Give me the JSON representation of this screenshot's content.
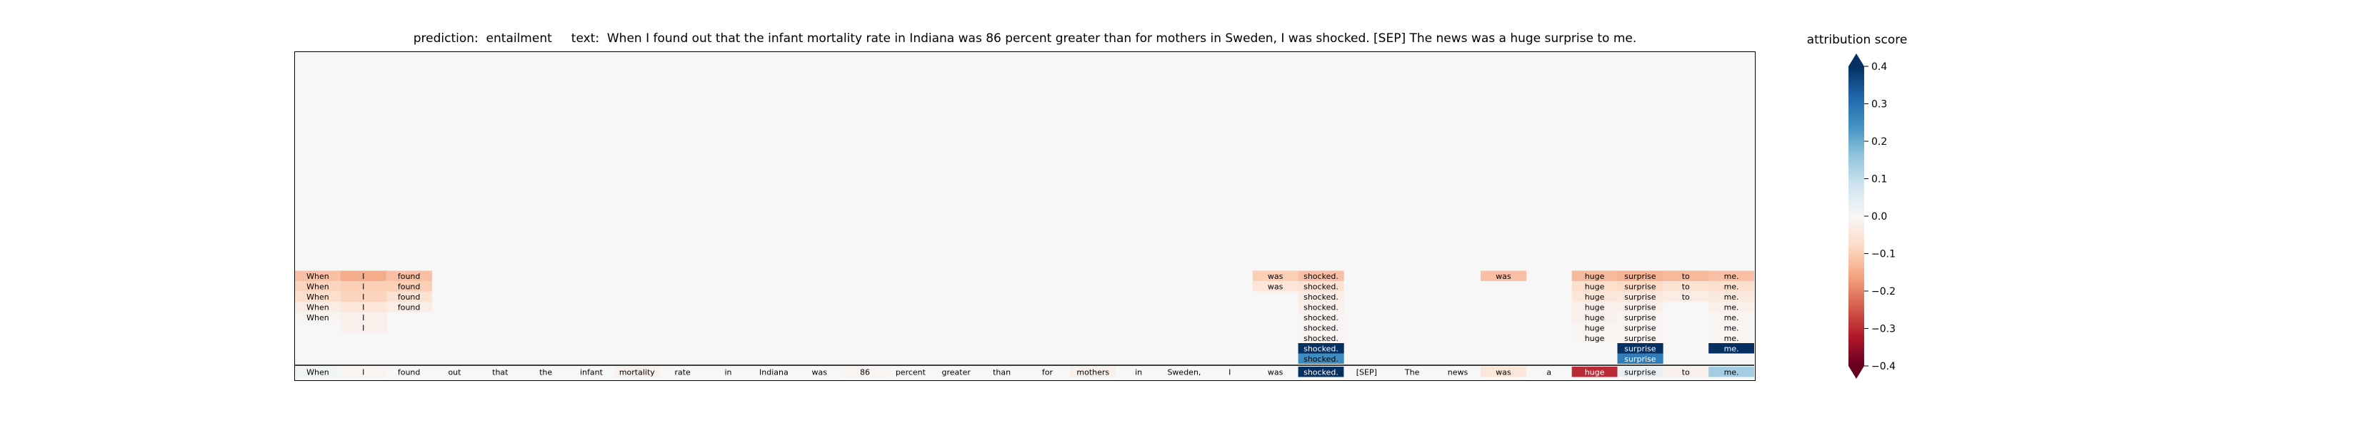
{
  "chart_data": {
    "type": "heatmap",
    "title": "prediction:  entailment     text:  When I found out that the infant mortality rate in Indiana was 86 percent greater than for mothers in Sweden, I was shocked. [SEP] The news was a huge surprise to me.",
    "tokens": [
      "When",
      "I",
      "found",
      "out",
      "that",
      "the",
      "infant",
      "mortality",
      "rate",
      "in",
      "Indiana",
      "was",
      "86",
      "percent",
      "greater",
      "than",
      "for",
      "mothers",
      "in",
      "Sweden,",
      "I",
      "was",
      "shocked.",
      "[SEP]",
      "The",
      "news",
      "was",
      "a",
      "huge",
      "surprise",
      "to",
      "me."
    ],
    "base_row_scores": [
      0.01,
      -0.01,
      0.0,
      0.0,
      0.0,
      0.0,
      0.0,
      -0.02,
      0.0,
      0.0,
      0.0,
      0.0,
      -0.01,
      0.0,
      0.0,
      0.0,
      0.0,
      -0.02,
      0.0,
      0.0,
      0.0,
      0.0,
      0.4,
      0.0,
      0.0,
      0.0,
      -0.05,
      0.0,
      -0.3,
      0.03,
      -0.02,
      0.14
    ],
    "stack_rows": [
      [
        [
          0,
          -0.12
        ],
        [
          1,
          -0.15
        ],
        [
          2,
          -0.12
        ],
        [
          21,
          -0.1
        ],
        [
          22,
          -0.12
        ],
        [
          26,
          -0.12
        ],
        [
          28,
          -0.13
        ],
        [
          29,
          -0.14
        ],
        [
          30,
          -0.13
        ],
        [
          31,
          -0.12
        ]
      ],
      [
        [
          0,
          -0.09
        ],
        [
          1,
          -0.1
        ],
        [
          2,
          -0.1
        ],
        [
          21,
          -0.05
        ],
        [
          22,
          -0.06
        ],
        [
          28,
          -0.07
        ],
        [
          29,
          -0.08
        ],
        [
          30,
          -0.06
        ],
        [
          31,
          -0.07
        ]
      ],
      [
        [
          0,
          -0.07
        ],
        [
          1,
          -0.09
        ],
        [
          2,
          -0.06
        ],
        [
          22,
          -0.03
        ],
        [
          28,
          -0.05
        ],
        [
          29,
          -0.04
        ],
        [
          30,
          -0.03
        ],
        [
          31,
          -0.04
        ]
      ],
      [
        [
          0,
          -0.03
        ],
        [
          1,
          -0.05
        ],
        [
          2,
          -0.03
        ],
        [
          22,
          -0.02
        ],
        [
          28,
          -0.02
        ],
        [
          29,
          -0.02
        ],
        [
          31,
          -0.02
        ]
      ],
      [
        [
          0,
          -0.01
        ],
        [
          1,
          -0.02
        ],
        [
          22,
          -0.01
        ],
        [
          28,
          -0.02
        ],
        [
          29,
          -0.01
        ],
        [
          31,
          -0.01
        ]
      ],
      [
        [
          1,
          -0.02
        ],
        [
          22,
          -0.01
        ],
        [
          28,
          -0.01
        ],
        [
          29,
          -0.01
        ],
        [
          31,
          -0.01
        ]
      ],
      [
        [
          22,
          -0.01
        ],
        [
          28,
          -0.01
        ],
        [
          29,
          -0.01
        ],
        [
          31,
          -0.01
        ]
      ],
      [
        [
          22,
          0.4
        ],
        [
          29,
          0.4
        ],
        [
          31,
          0.4
        ]
      ],
      [
        [
          22,
          0.25
        ],
        [
          29,
          0.28
        ]
      ]
    ],
    "color_scale": {
      "label": "attribution score",
      "min": -0.4,
      "max": 0.4,
      "ticks": [
        "0.4",
        "0.3",
        "0.2",
        "0.1",
        "0.0",
        "−0.1",
        "−0.2",
        "−0.3",
        "−0.4"
      ],
      "colors": [
        "#67001f",
        "#b2182b",
        "#d6604d",
        "#f4a582",
        "#fddbc7",
        "#f7f7f7",
        "#d1e5f0",
        "#92c5de",
        "#4393c3",
        "#2166ac",
        "#053061"
      ]
    }
  }
}
